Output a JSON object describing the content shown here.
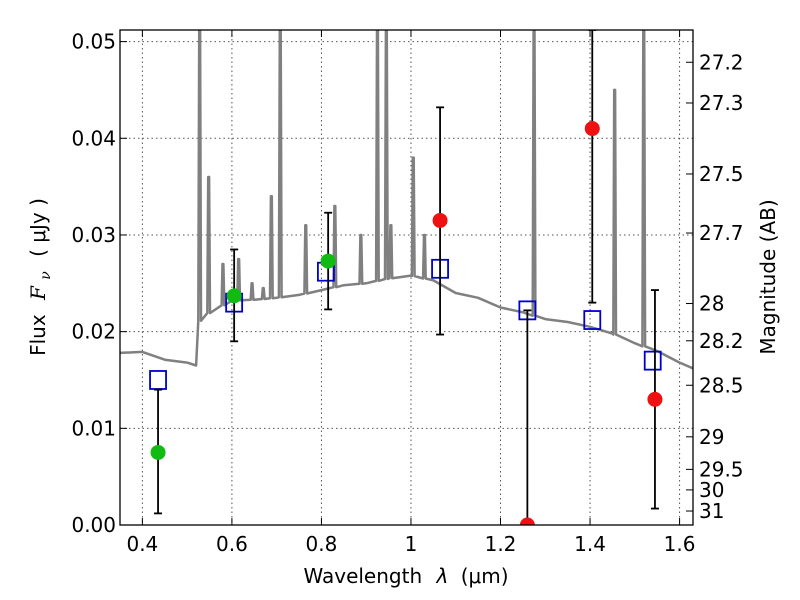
{
  "chart_data": {
    "type": "scatter",
    "xlabel_text": "Wavelength",
    "xlabel_var": "λ",
    "xlabel_unit": "(μm)",
    "ylabel_text": "Flux",
    "ylabel_var": "F",
    "ylabel_sub": "ν",
    "ylabel_unit": "( μJy )",
    "y2label": "Magnitude (AB)",
    "xlim": [
      0.35,
      1.63
    ],
    "ylim": [
      0.0,
      0.0512
    ],
    "x_ticks": [
      0.4,
      0.6,
      0.8,
      1.0,
      1.2,
      1.4,
      1.6
    ],
    "x_tick_labels": [
      "0.4",
      "0.6",
      "0.8",
      "1",
      "1.2",
      "1.4",
      "1.6"
    ],
    "y_ticks": [
      0.0,
      0.01,
      0.02,
      0.03,
      0.04,
      0.05
    ],
    "y_tick_labels": [
      "0.00",
      "0.01",
      "0.02",
      "0.03",
      "0.04",
      "0.05"
    ],
    "mag_ticks": [
      27.2,
      27.3,
      27.5,
      27.7,
      28,
      28.2,
      28.5,
      29,
      29.5,
      30,
      31
    ],
    "mag_tick_labels": [
      "27.2",
      "27.3",
      "27.5",
      "27.7",
      "28",
      "28.2",
      "28.5",
      "29",
      "29.5",
      "30",
      "31"
    ],
    "grid": true,
    "colors": {
      "model": "#808080",
      "model_photometry": "#0000cc",
      "detection": "#11bb11",
      "non_detection": "#ee1111",
      "error_bar": "#000000"
    },
    "model_spectrum_continuum": {
      "x": [
        0.35,
        0.4,
        0.45,
        0.5,
        0.52,
        0.525,
        0.55,
        0.6,
        0.65,
        0.7,
        0.75,
        0.8,
        0.85,
        0.9,
        0.95,
        1.0,
        1.05,
        1.1,
        1.15,
        1.2,
        1.25,
        1.3,
        1.35,
        1.4,
        1.45,
        1.5,
        1.55,
        1.6,
        1.63
      ],
      "y": [
        0.0178,
        0.0179,
        0.0171,
        0.0168,
        0.0165,
        0.021,
        0.022,
        0.0232,
        0.0233,
        0.0235,
        0.0238,
        0.0243,
        0.0248,
        0.025,
        0.0255,
        0.0258,
        0.0253,
        0.024,
        0.0235,
        0.0225,
        0.022,
        0.0213,
        0.021,
        0.0205,
        0.0198,
        0.0188,
        0.018,
        0.0168,
        0.0162
      ]
    },
    "model_spectrum_lines": [
      {
        "x": 0.528,
        "peak": 0.0512
      },
      {
        "x": 0.548,
        "peak": 0.036
      },
      {
        "x": 0.58,
        "peak": 0.027
      },
      {
        "x": 0.615,
        "peak": 0.0275
      },
      {
        "x": 0.645,
        "peak": 0.025
      },
      {
        "x": 0.67,
        "peak": 0.0245
      },
      {
        "x": 0.688,
        "peak": 0.034
      },
      {
        "x": 0.708,
        "peak": 0.0512
      },
      {
        "x": 0.765,
        "peak": 0.031
      },
      {
        "x": 0.83,
        "peak": 0.033
      },
      {
        "x": 0.888,
        "peak": 0.03
      },
      {
        "x": 0.925,
        "peak": 0.0512
      },
      {
        "x": 0.945,
        "peak": 0.0512
      },
      {
        "x": 0.955,
        "peak": 0.031
      },
      {
        "x": 1.005,
        "peak": 0.038
      },
      {
        "x": 1.03,
        "peak": 0.03
      },
      {
        "x": 1.275,
        "peak": 0.0512
      },
      {
        "x": 1.455,
        "peak": 0.045
      },
      {
        "x": 1.52,
        "peak": 0.0512
      }
    ],
    "model_photometry": {
      "x": [
        0.435,
        0.605,
        0.81,
        1.065,
        1.26,
        1.405,
        1.54
      ],
      "y": [
        0.015,
        0.023,
        0.0262,
        0.0265,
        0.0222,
        0.0212,
        0.017
      ]
    },
    "observed": [
      {
        "x": 0.435,
        "y": 0.0075,
        "yerr_low": 0.0012,
        "yerr_high": 0.014,
        "status": "detection"
      },
      {
        "x": 0.605,
        "y": 0.0237,
        "yerr_low": 0.019,
        "yerr_high": 0.0285,
        "status": "detection"
      },
      {
        "x": 0.815,
        "y": 0.0273,
        "yerr_low": 0.0223,
        "yerr_high": 0.0323,
        "status": "detection"
      },
      {
        "x": 1.065,
        "y": 0.0315,
        "yerr_low": 0.0197,
        "yerr_high": 0.0432,
        "status": "non_detection"
      },
      {
        "x": 1.26,
        "y": 0.0,
        "yerr_low": 0.0,
        "yerr_high": 0.0222,
        "status": "non_detection"
      },
      {
        "x": 1.405,
        "y": 0.041,
        "yerr_low": 0.023,
        "yerr_high": 0.0512,
        "status": "non_detection"
      },
      {
        "x": 1.545,
        "y": 0.013,
        "yerr_low": 0.0017,
        "yerr_high": 0.0243,
        "status": "non_detection"
      }
    ]
  }
}
